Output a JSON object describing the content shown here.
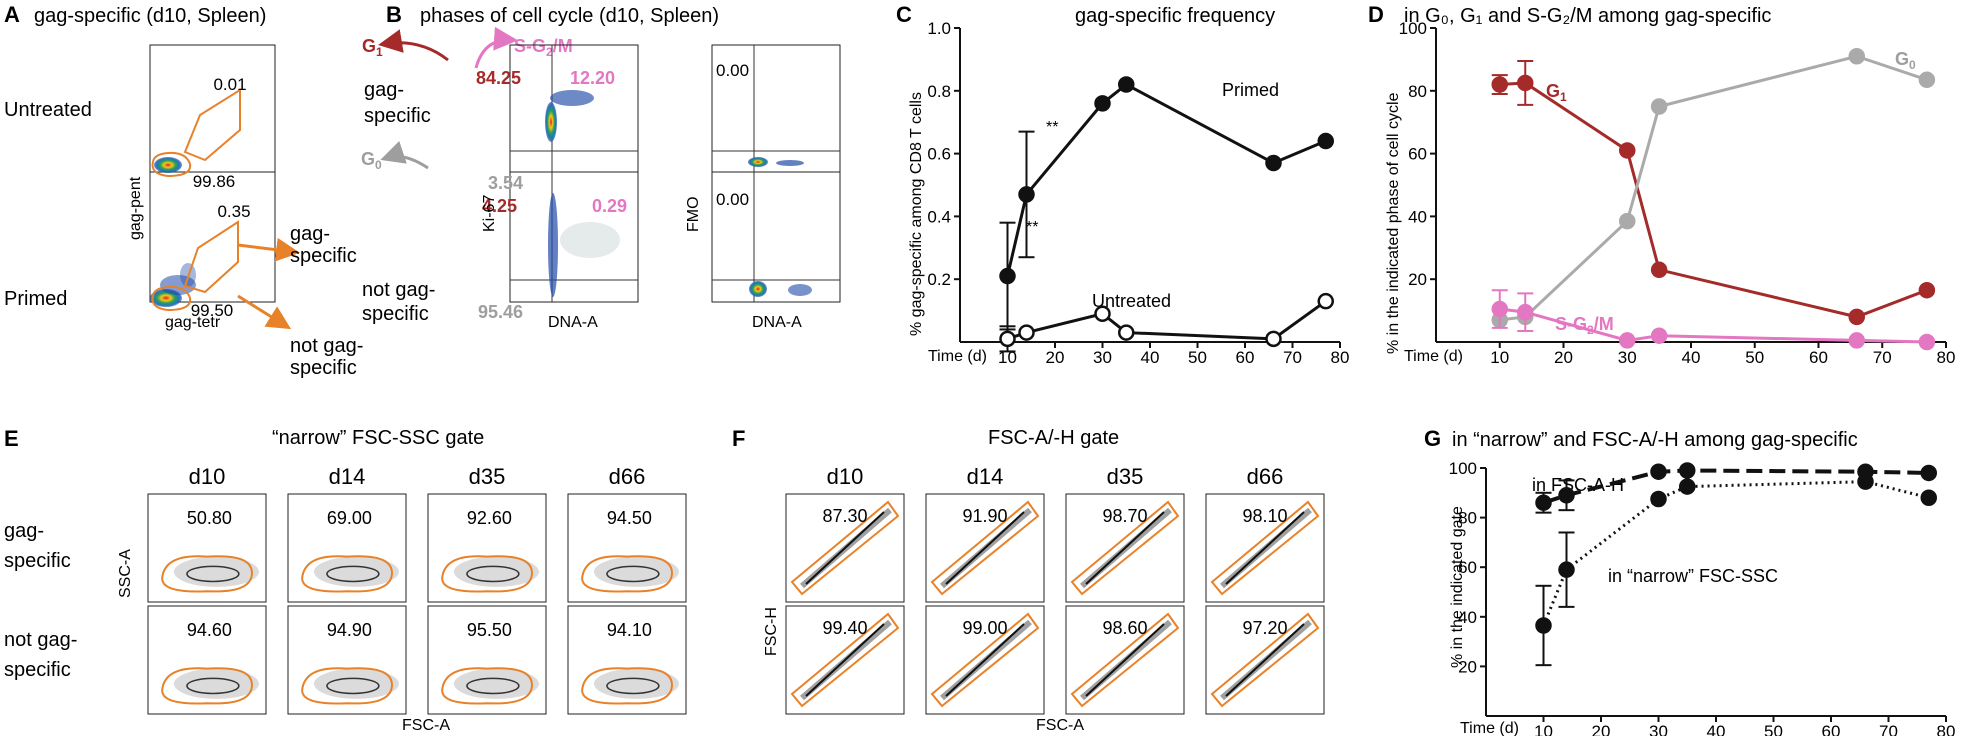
{
  "panels": {
    "A": {
      "letter": "A",
      "title": "gag-specific (d10, Spleen)",
      "row_untreated": "Untreated",
      "row_primed": "Primed",
      "untreated_top": "0.01",
      "untreated_bottom": "99.86",
      "primed_top": "0.35",
      "primed_bottom": "99.50",
      "ylabel": "gag-pent",
      "xlabel": "gag-tetr",
      "arrow_top": [
        "gag-",
        "specific"
      ],
      "arrow_bottom": [
        "not gag-",
        "specific"
      ]
    },
    "B": {
      "letter": "B",
      "title": "phases of cell cycle (d10, Spleen)",
      "g1": "G",
      "g1_sub": "1",
      "sg2m": "S-G",
      "sg2m_sub": "2",
      "sg2m_tail": "/M",
      "g0": "G",
      "g0_sub": "0",
      "row1": [
        "gag-",
        "specific"
      ],
      "row2": [
        "not gag-",
        "specific"
      ],
      "q_top_g1": "84.25",
      "q_top_s": "12.20",
      "q_top_g0": "3.54",
      "q_bot_g1": "4.25",
      "q_bot_s": "0.29",
      "q_bot_g0": "95.46",
      "fmo_top": "0.00",
      "fmo_bot": "0.00",
      "ylabel": "Ki-67",
      "ylabel2": "FMO",
      "xlabel": "DNA-A",
      "xlabel2": "DNA-A"
    },
    "C": {
      "letter": "C",
      "title": "gag-specific frequency",
      "ylabel": "% gag-specific among CD8 T cells",
      "xlabel": "Time (d)",
      "label_primed": "Primed",
      "label_untreated": "Untreated",
      "sig1": "**",
      "sig2": "**"
    },
    "D": {
      "letter": "D",
      "title": "in G₀, G₁ and S-G₂/M among gag-specific",
      "ylabel": "% in the indicated phase of cell cycle",
      "xlabel": "Time (d)",
      "lab_g0": "G",
      "lab_g0_sub": "0",
      "lab_g1": "G",
      "lab_g1_sub": "1",
      "lab_s": "S-G",
      "lab_s_sub": "2",
      "lab_s_tail": "/M"
    },
    "E": {
      "letter": "E",
      "title": "“narrow” FSC-SSC gate",
      "days": [
        "d10",
        "d14",
        "d35",
        "d66"
      ],
      "top": [
        "50.80",
        "69.00",
        "92.60",
        "94.50"
      ],
      "bottom": [
        "94.60",
        "94.90",
        "95.50",
        "94.10"
      ],
      "row1": [
        "gag-",
        "specific"
      ],
      "row2": [
        "not gag-",
        "specific"
      ],
      "ylabel": "SSC-A",
      "xlabel": "FSC-A"
    },
    "F": {
      "letter": "F",
      "title": "FSC-A/-H gate",
      "days": [
        "d10",
        "d14",
        "d35",
        "d66"
      ],
      "top": [
        "87.30",
        "91.90",
        "98.70",
        "98.10"
      ],
      "bottom": [
        "99.40",
        "99.00",
        "98.60",
        "97.20"
      ],
      "ylabel": "FSC-H",
      "xlabel": "FSC-A"
    },
    "G": {
      "letter": "G",
      "title": "in “narrow” and FSC-A/-H among gag-specific",
      "ylabel": "% in the indicated gate",
      "xlabel": "Time (d)",
      "label_fsc": "in FSC-A-H",
      "label_narrow": "in “narrow” FSC-SSC"
    }
  },
  "colors": {
    "orange": "#e8822a",
    "dark_red": "#a52a2a",
    "pink": "#e377c2",
    "gray": "#9e9e9e",
    "blue": "#1f4aa8",
    "black": "#111111"
  },
  "chart_data": [
    {
      "type": "line",
      "id": "C",
      "title": "gag-specific frequency",
      "xlabel": "Time (d)",
      "ylabel": "% gag-specific among CD8 T cells",
      "xlim": [
        0,
        80
      ],
      "ylim": [
        0,
        1.0
      ],
      "xticks": [
        10,
        20,
        30,
        40,
        50,
        60,
        70,
        80
      ],
      "yticks": [
        0.2,
        0.4,
        0.6,
        0.8,
        1.0
      ],
      "series": [
        {
          "name": "Primed",
          "x": [
            10,
            14,
            30,
            35,
            66,
            77
          ],
          "y": [
            0.21,
            0.47,
            0.76,
            0.82,
            0.57,
            0.64
          ],
          "err": [
            0.17,
            0.2,
            0,
            0,
            0,
            0
          ]
        },
        {
          "name": "Untreated",
          "x": [
            10,
            14,
            30,
            35,
            66,
            77
          ],
          "y": [
            0.01,
            0.03,
            0.09,
            0.03,
            0.01,
            0.13
          ],
          "err": [
            0.04,
            0,
            0,
            0,
            0,
            0
          ]
        }
      ]
    },
    {
      "type": "line",
      "id": "D",
      "title": "in G0, G1 and S-G2/M among gag-specific",
      "xlabel": "Time (d)",
      "ylabel": "% in the indicated phase of cell cycle",
      "xlim": [
        0,
        80
      ],
      "ylim": [
        0,
        100
      ],
      "xticks": [
        10,
        20,
        30,
        40,
        50,
        60,
        70,
        80
      ],
      "yticks": [
        20,
        40,
        60,
        80,
        100
      ],
      "series": [
        {
          "name": "G1",
          "x": [
            10,
            14,
            30,
            35,
            66,
            77
          ],
          "y": [
            82,
            82.5,
            61,
            23,
            8,
            16.5
          ],
          "err": [
            3,
            7,
            0,
            0,
            0,
            0
          ]
        },
        {
          "name": "G0",
          "x": [
            10,
            14,
            30,
            35,
            66,
            77
          ],
          "y": [
            7,
            8,
            38.5,
            75,
            91,
            83.5
          ],
          "err": [
            0,
            0,
            0,
            0,
            0,
            0
          ]
        },
        {
          "name": "S-G2/M",
          "x": [
            10,
            14,
            30,
            35,
            66,
            77
          ],
          "y": [
            10.5,
            9.5,
            0.5,
            2,
            0.5,
            0
          ],
          "err": [
            6,
            6,
            0,
            0,
            0,
            0
          ]
        }
      ]
    },
    {
      "type": "line",
      "id": "G",
      "title": "in “narrow” and FSC-A/-H among gag-specific",
      "xlabel": "Time (d)",
      "ylabel": "% in the indicated gate",
      "xlim": [
        0,
        80
      ],
      "ylim": [
        0,
        100
      ],
      "xticks": [
        10,
        20,
        30,
        40,
        50,
        60,
        70,
        80
      ],
      "yticks": [
        20,
        40,
        60,
        80,
        100
      ],
      "series": [
        {
          "name": "in FSC-A-H",
          "x": [
            10,
            14,
            30,
            35,
            66,
            77
          ],
          "y": [
            86,
            89,
            98.5,
            99,
            98.5,
            98
          ],
          "err": [
            4,
            6,
            0,
            0,
            0,
            0
          ]
        },
        {
          "name": "in “narrow” FSC-SSC",
          "x": [
            10,
            14,
            30,
            35,
            66,
            77
          ],
          "y": [
            36.5,
            59,
            87.5,
            92.5,
            94.5,
            88
          ],
          "err": [
            16,
            15,
            0,
            0,
            0,
            0
          ]
        }
      ]
    }
  ]
}
